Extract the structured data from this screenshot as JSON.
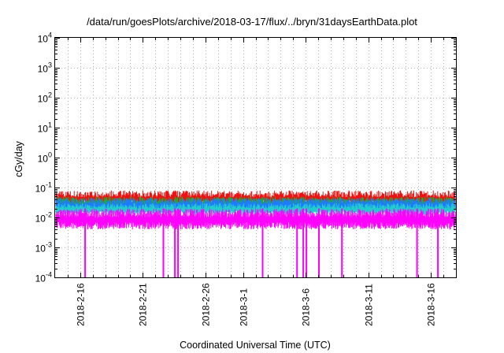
{
  "chart_data": {
    "type": "line",
    "title": "/data/run/goesPlots/archive/2018-03-17/flux/../bryn/31daysEarthData.plot",
    "xlabel": "Coordinated Universal Time (UTC)",
    "ylabel": "cGy/day",
    "yscale": "log",
    "ylim": [
      0.0001,
      10000
    ],
    "xlim": [
      "2018-02-14",
      "2018-03-18"
    ],
    "grid": true,
    "y_ticks": [
      {
        "value": 0.0001,
        "base": "10",
        "exp": "-4"
      },
      {
        "value": 0.001,
        "base": "10",
        "exp": "-3"
      },
      {
        "value": 0.01,
        "base": "10",
        "exp": "-2"
      },
      {
        "value": 0.1,
        "base": "10",
        "exp": "-1"
      },
      {
        "value": 1,
        "base": "10",
        "exp": "0"
      },
      {
        "value": 10,
        "base": "10",
        "exp": "1"
      },
      {
        "value": 100,
        "base": "10",
        "exp": "2"
      },
      {
        "value": 1000,
        "base": "10",
        "exp": "3"
      },
      {
        "value": 10000,
        "base": "10",
        "exp": "4"
      }
    ],
    "x_ticks": [
      "2018-2-16",
      "2018-2-21",
      "2018-2-26",
      "2018-3-1",
      "2018-3-6",
      "2018-3-11",
      "2018-3-16"
    ],
    "x_tick_dates": [
      "2018-02-16",
      "2018-02-21",
      "2018-02-26",
      "2018-03-01",
      "2018-03-06",
      "2018-03-11",
      "2018-03-16"
    ],
    "series": [
      {
        "color": "#ee1111",
        "band": [
          0.025,
          0.08
        ]
      },
      {
        "color": "#22aa33",
        "band": [
          0.018,
          0.05
        ]
      },
      {
        "color": "#1e7bff",
        "band": [
          0.014,
          0.045
        ]
      },
      {
        "color": "#22cccc",
        "band": [
          0.012,
          0.03
        ]
      },
      {
        "color": "#ff00ff",
        "band": [
          0.004,
          0.02
        ]
      }
    ],
    "dropouts": [
      "2018-02-16T08:00",
      "2018-02-22T14:00",
      "2018-02-23T12:00",
      "2018-02-23T18:00",
      "2018-03-02T12:00",
      "2018-03-05T06:00",
      "2018-03-05T18:00",
      "2018-03-06T00:00",
      "2018-03-07T00:00",
      "2018-03-08T20:00",
      "2018-03-14T20:00",
      "2018-03-16T12:00"
    ]
  }
}
